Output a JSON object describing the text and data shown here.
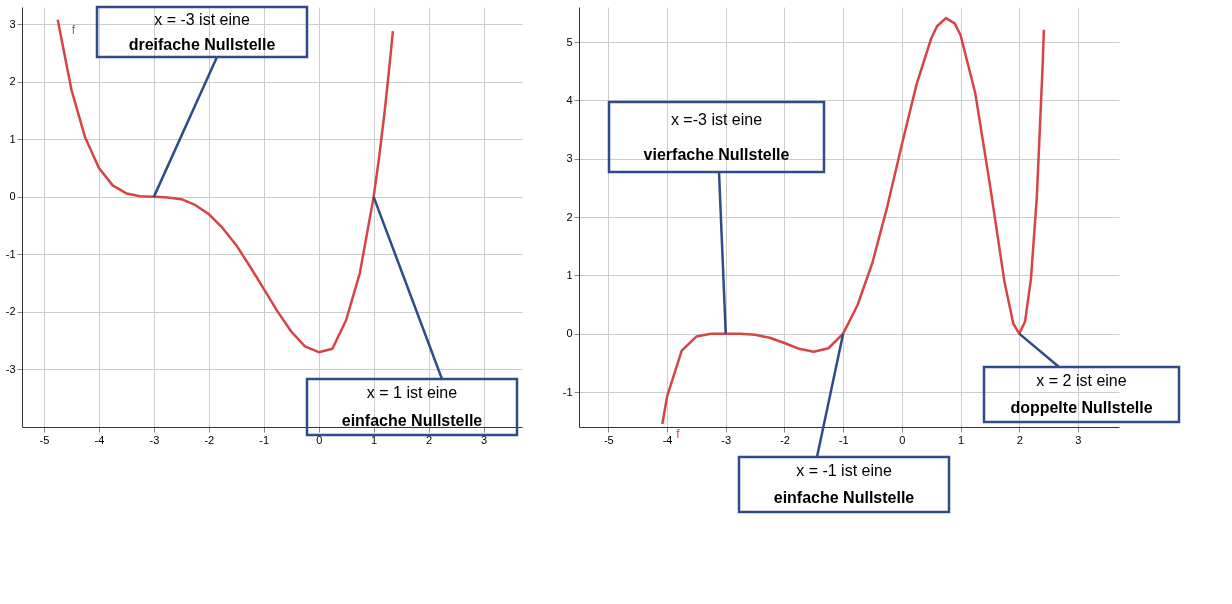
{
  "chart_data": [
    {
      "type": "line",
      "x": [
        -4.75,
        -4.5,
        -4.25,
        -4,
        -3.75,
        -3.5,
        -3.25,
        -3,
        -2.75,
        -2.5,
        -2.25,
        -2,
        -1.75,
        -1.5,
        -1.25,
        -1,
        -0.75,
        -0.5,
        -0.25,
        0,
        0.25,
        0.5,
        0.75,
        1,
        1.1,
        1.2,
        1.3,
        1.35
      ],
      "series": [
        {
          "name": "f",
          "color": "#d64545",
          "values": [
            3.08,
            1.86,
            1.03,
            0.5,
            0.2,
            0.06,
            0.01,
            0,
            -0.01,
            -0.04,
            -0.14,
            -0.3,
            -0.54,
            -0.84,
            -1.21,
            -1.6,
            -1.99,
            -2.34,
            -2.6,
            -2.7,
            -2.64,
            -2.14,
            -1.32,
            0,
            0.69,
            1.48,
            2.39,
            2.88
          ]
        }
      ],
      "xlim": [
        -5.4,
        3.7
      ],
      "ylim": [
        -4,
        3.3
      ],
      "xticks": [
        -5,
        -4,
        -3,
        -2,
        -1,
        0,
        1,
        2,
        3
      ],
      "yticks": [
        -3,
        -2,
        -1,
        0,
        1,
        2,
        3
      ],
      "grid": true,
      "legend": false,
      "marker": "none",
      "line_style": "solid",
      "annotations": [
        {
          "text": "x = -3 ist eine\ndreifache Nullstelle",
          "x": -3,
          "y": 0
        },
        {
          "text": "x = 1 ist eine\neinfache Nullstelle",
          "x": 1,
          "y": 0
        }
      ]
    },
    {
      "type": "line",
      "x": [
        -4.08,
        -4,
        -3.75,
        -3.5,
        -3.25,
        -3,
        -2.75,
        -2.5,
        -2.25,
        -2,
        -1.75,
        -1.5,
        -1.25,
        -1,
        -0.75,
        -0.5,
        -0.25,
        0,
        0.25,
        0.5,
        0.6,
        0.75,
        0.9,
        1,
        1.25,
        1.5,
        1.75,
        1.9,
        2,
        2.1,
        2.2,
        2.3,
        2.4,
        2.42
      ],
      "series": [
        {
          "name": "f",
          "color": "#d64545",
          "values": [
            -1.55,
            -1.08,
            -0.29,
            -0.05,
            0,
            0,
            0,
            -0.02,
            -0.07,
            -0.16,
            -0.26,
            -0.31,
            -0.25,
            0,
            0.5,
            1.22,
            2.17,
            3.24,
            4.27,
            5.06,
            5.27,
            5.41,
            5.32,
            5.12,
            4.13,
            2.56,
            0.88,
            0.17,
            0,
            0.21,
            0.94,
            2.34,
            4.62,
            5.21
          ]
        }
      ],
      "xlim": [
        -5.5,
        3.7
      ],
      "ylim": [
        -1.6,
        5.6
      ],
      "xticks": [
        -5,
        -4,
        -3,
        -2,
        -1,
        0,
        1,
        2,
        3
      ],
      "yticks": [
        -1,
        0,
        1,
        2,
        3,
        4,
        5
      ],
      "grid": true,
      "legend": false,
      "marker": "none",
      "line_style": "solid",
      "annotations": [
        {
          "text": "x =-3 ist eine\nvierfache Nullstelle",
          "x": -3,
          "y": 0
        },
        {
          "text": "x = -1 ist eine\neinfache Nullstelle",
          "x": -1,
          "y": 0
        },
        {
          "text": "x = 2 ist eine\ndoppelte Nullstelle",
          "x": 2,
          "y": 0
        }
      ]
    }
  ]
}
